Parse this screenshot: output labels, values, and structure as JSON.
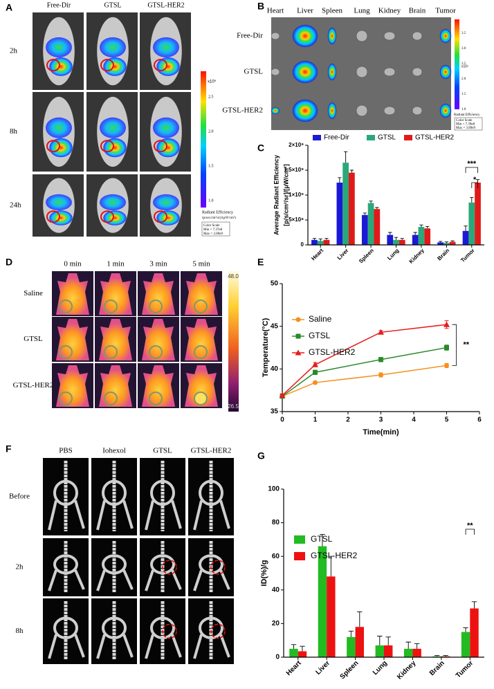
{
  "figure_labels": [
    "A",
    "B",
    "C",
    "D",
    "E",
    "F",
    "G"
  ],
  "panel_A": {
    "columns": [
      "Free-Dir",
      "GTSL",
      "GTSL-HER2"
    ],
    "rows": [
      "2h",
      "8h",
      "24h"
    ],
    "colorbar_ticks": [
      "2.5",
      "2.0",
      "1.5",
      "1.0"
    ],
    "colorbar_unit": "x10⁹",
    "colorbar_title": "Radiant Efficiency",
    "colorbar_units": "(p/sec/cm²/sr)/(µW/cm²)",
    "color_scale": [
      "Color Scale",
      "Min = 7.37e8",
      "Max = 2.89e9"
    ]
  },
  "panel_B": {
    "columns": [
      "Heart",
      "Liver",
      "Spleen",
      "Lung",
      "Kidney",
      "Brain",
      "Tumor"
    ],
    "rows": [
      "Free-Dir",
      "GTSL",
      "GTSL-HER2"
    ],
    "colorbar_ticks": [
      "3.5",
      "3.0",
      "2.5",
      "2.0",
      "1.5",
      "1.0"
    ],
    "colorbar_unit": "x10⁹",
    "colorbar_title": "Radiant Efficiency",
    "color_scale": [
      "Color Scale",
      "Min = 7.39e8",
      "Max = 3.89e9"
    ]
  },
  "panel_D": {
    "columns": [
      "0 min",
      "1 min",
      "3 min",
      "5 min"
    ],
    "rows": [
      "Saline",
      "GTSL",
      "GTSL-HER2"
    ],
    "colorbar_max": "48.0",
    "colorbar_min": "26.5"
  },
  "panel_F": {
    "columns": [
      "PBS",
      "Iohexol",
      "GTSL",
      "GTSL-HER2"
    ],
    "rows": [
      "Before",
      "2h",
      "8h"
    ]
  },
  "chart_data": [
    {
      "type": "bar",
      "ylabel": [
        "Average Radiant Efficiency",
        "[p/s/cm²/sr]/[μW/cm²]"
      ],
      "categories": [
        "Heart",
        "Liver",
        "Spleen",
        "Lung",
        "Kidney",
        "Brain",
        "Tumor"
      ],
      "series": [
        {
          "name": "Free-Dir",
          "color": "#1a1ad6",
          "values": [
            100000000.0,
            1250000000.0,
            600000000.0,
            200000000.0,
            200000000.0,
            50000000.0,
            280000000.0
          ],
          "errors": [
            30000000.0,
            100000000.0,
            40000000.0,
            50000000.0,
            50000000.0,
            20000000.0,
            100000000.0
          ]
        },
        {
          "name": "GTSL",
          "color": "#2aa87a",
          "values": [
            80000000.0,
            1650000000.0,
            840000000.0,
            100000000.0,
            360000000.0,
            40000000.0,
            850000000.0
          ],
          "errors": [
            40000000.0,
            220000000.0,
            40000000.0,
            50000000.0,
            40000000.0,
            20000000.0,
            100000000.0
          ]
        },
        {
          "name": "GTSL-HER2",
          "color": "#e01a1a",
          "values": [
            100000000.0,
            1450000000.0,
            720000000.0,
            100000000.0,
            330000000.0,
            60000000.0,
            1250000000.0
          ],
          "errors": [
            30000000.0,
            50000000.0,
            30000000.0,
            30000000.0,
            40000000.0,
            20000000.0,
            60000000.0
          ]
        }
      ],
      "ylim": [
        0,
        2000000000.0
      ],
      "yticks": [
        0,
        {
          "value": 500000000.0,
          "label": "5×10⁸"
        },
        {
          "value": 1000000000.0,
          "label": "1×10⁹"
        },
        {
          "value": 1500000000.0,
          "label": "1.5×10⁹"
        },
        {
          "value": 2000000000.0,
          "label": "2×10⁹"
        }
      ],
      "annotations": [
        "***",
        "*"
      ]
    },
    {
      "type": "line",
      "xlabel": "Time(min)",
      "ylabel": "Temperature(°C)",
      "x": [
        0,
        1,
        3,
        5
      ],
      "series": [
        {
          "name": "Saline",
          "color": "#f5901e",
          "marker": "circle",
          "values": [
            36.8,
            38.4,
            39.3,
            40.4
          ],
          "errors": [
            0.2,
            0.15,
            0.25,
            0.25
          ]
        },
        {
          "name": "GTSL",
          "color": "#2a8a2a",
          "marker": "square",
          "values": [
            36.8,
            39.6,
            41.1,
            42.5
          ],
          "errors": [
            0.2,
            0.25,
            0.25,
            0.3
          ]
        },
        {
          "name": "GTSL-HER2",
          "color": "#e81c1c",
          "marker": "triangle",
          "values": [
            36.9,
            40.5,
            44.3,
            45.2
          ],
          "errors": [
            0.2,
            0.25,
            0.2,
            0.45
          ]
        }
      ],
      "xlim": [
        0,
        6
      ],
      "xticks": [
        0,
        1,
        2,
        3,
        4,
        5,
        6
      ],
      "ylim": [
        35,
        50
      ],
      "yticks": [
        35,
        40,
        45,
        50
      ],
      "annotations": [
        "**"
      ]
    },
    {
      "type": "bar",
      "ylabel": "ID(%)/g",
      "categories": [
        "Heart",
        "Liver",
        "Spleen",
        "Lung",
        "Kidney",
        "Brain",
        "Tumor"
      ],
      "series": [
        {
          "name": "GTSL",
          "color": "#22bb22",
          "values": [
            5,
            66,
            12,
            7,
            5,
            0.5,
            15
          ],
          "errors": [
            2.5,
            7,
            3.5,
            5.5,
            4,
            0.5,
            2.5
          ]
        },
        {
          "name": "GTSL-HER2",
          "color": "#ee1111",
          "values": [
            3.5,
            48,
            18,
            7,
            5,
            0.5,
            29
          ],
          "errors": [
            3,
            12,
            9,
            5,
            3,
            0.5,
            4
          ]
        }
      ],
      "ylim": [
        0,
        100
      ],
      "yticks": [
        0,
        20,
        40,
        60,
        80,
        100
      ],
      "annotations": [
        "**"
      ]
    }
  ]
}
